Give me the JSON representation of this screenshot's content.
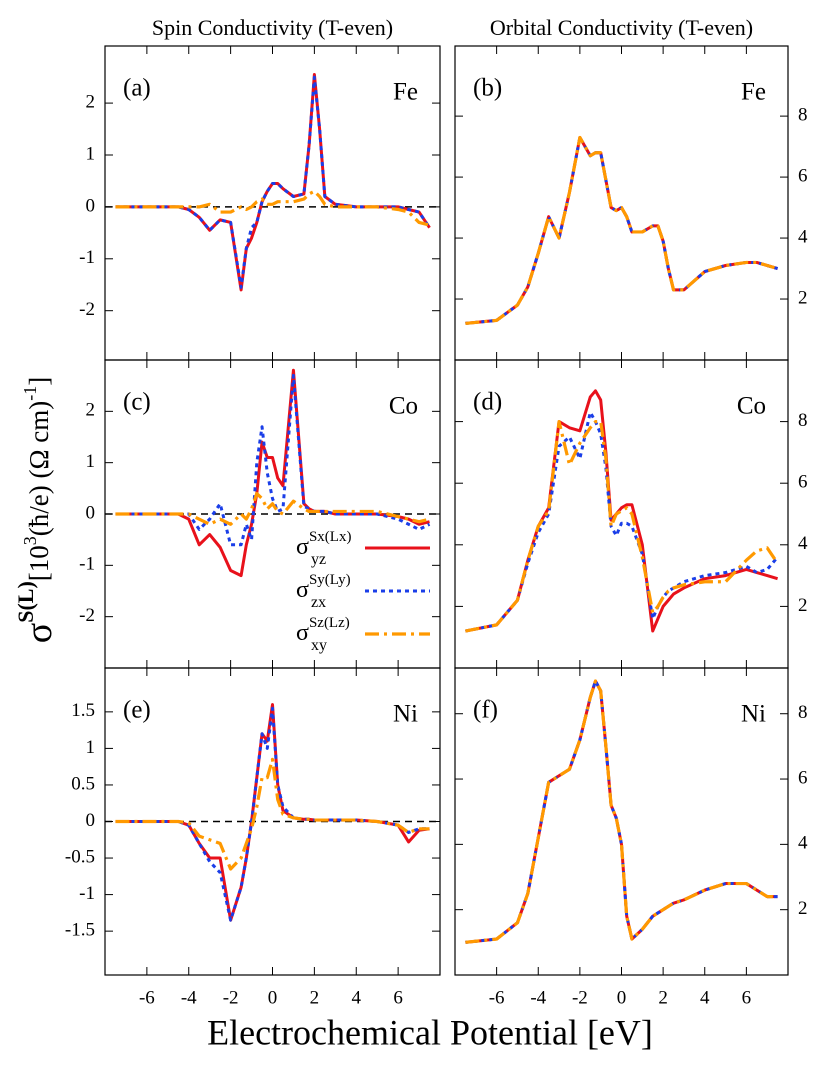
{
  "chart_data": [
    {
      "type": "line",
      "title": "Spin Conductivity (T-even)",
      "panel_label": "(a)",
      "element": "Fe",
      "zero_line": true,
      "yaxis_side": "left",
      "show_xtick_labels": false,
      "xlim": [
        -8,
        8
      ],
      "xticks": [
        -6,
        -4,
        -2,
        0,
        2,
        4,
        6
      ],
      "ylim": [
        -2.95,
        3.1
      ],
      "yticks": [
        -2,
        -1,
        0,
        1,
        2
      ],
      "x": [
        -7.5,
        -6,
        -5,
        -4.5,
        -4,
        -3.5,
        -3,
        -2.5,
        -2,
        -1.5,
        -1.25,
        -1,
        -0.75,
        -0.5,
        -0.25,
        0,
        0.25,
        0.5,
        1,
        1.5,
        1.75,
        2,
        2.25,
        2.5,
        3,
        4,
        5,
        6,
        6.5,
        7,
        7.5
      ],
      "series": [
        {
          "color": "#e8111b",
          "dash": "solid",
          "values": [
            0,
            0,
            0,
            0,
            -0.05,
            -0.2,
            -0.45,
            -0.25,
            -0.3,
            -1.6,
            -0.8,
            -0.6,
            -0.3,
            0.1,
            0.3,
            0.45,
            0.45,
            0.35,
            0.2,
            0.25,
            1.2,
            2.55,
            1.5,
            0.2,
            0.05,
            0,
            0,
            0,
            -0.05,
            -0.1,
            -0.4
          ]
        },
        {
          "color": "#1a3ee8",
          "dash": "dotted",
          "values": [
            0,
            0,
            0,
            0,
            -0.05,
            -0.2,
            -0.45,
            -0.25,
            -0.3,
            -1.55,
            -0.8,
            -0.4,
            -0.3,
            0.1,
            0.3,
            0.45,
            0.45,
            0.35,
            0.2,
            0.25,
            1.2,
            2.5,
            1.5,
            0.2,
            0.05,
            0,
            0,
            0,
            -0.05,
            -0.1,
            -0.4
          ]
        },
        {
          "color": "#ff9900",
          "dash": "dashdot",
          "values": [
            0,
            0,
            0,
            0,
            0,
            0,
            0.05,
            -0.1,
            -0.1,
            0,
            -0.05,
            0,
            0.1,
            0.15,
            0.05,
            0.05,
            0.1,
            0.1,
            0.1,
            0.15,
            0.25,
            0.3,
            0.2,
            0.05,
            0,
            0,
            0,
            -0.05,
            -0.1,
            -0.3,
            -0.35
          ]
        }
      ]
    },
    {
      "type": "line",
      "title": "Orbital Conductivity (T-even)",
      "panel_label": "(b)",
      "element": "Fe",
      "zero_line": false,
      "yaxis_side": "right",
      "show_xtick_labels": false,
      "xlim": [
        -8,
        8
      ],
      "xticks": [
        -6,
        -4,
        -2,
        0,
        2,
        4,
        6
      ],
      "ylim": [
        0,
        10.3
      ],
      "yticks": [
        2,
        4,
        6,
        8
      ],
      "x": [
        -7.5,
        -6,
        -5,
        -4.5,
        -4,
        -3.5,
        -3,
        -2.5,
        -2,
        -1.5,
        -1.25,
        -1,
        -0.75,
        -0.5,
        -0.25,
        0,
        0.25,
        0.5,
        1,
        1.5,
        1.75,
        2,
        2.25,
        2.5,
        3,
        4,
        5,
        6,
        6.5,
        7,
        7.5
      ],
      "series": [
        {
          "color": "#e8111b",
          "dash": "solid",
          "values": [
            1.2,
            1.3,
            1.8,
            2.4,
            3.5,
            4.7,
            4.0,
            5.5,
            7.3,
            6.7,
            6.8,
            6.8,
            5.9,
            5.0,
            4.9,
            5.0,
            4.7,
            4.2,
            4.2,
            4.4,
            4.4,
            3.9,
            3.0,
            2.3,
            2.3,
            2.9,
            3.1,
            3.2,
            3.2,
            3.1,
            3.0
          ]
        },
        {
          "color": "#1a3ee8",
          "dash": "dotted",
          "values": [
            1.2,
            1.3,
            1.8,
            2.4,
            3.5,
            4.7,
            4.0,
            5.5,
            7.3,
            6.7,
            6.8,
            6.8,
            5.9,
            5.0,
            4.9,
            5.0,
            4.7,
            4.2,
            4.2,
            4.4,
            4.4,
            3.9,
            3.0,
            2.3,
            2.3,
            2.9,
            3.1,
            3.2,
            3.2,
            3.1,
            3.0
          ]
        },
        {
          "color": "#ff9900",
          "dash": "dashdot",
          "values": [
            1.2,
            1.3,
            1.8,
            2.4,
            3.5,
            4.7,
            4.0,
            5.5,
            7.3,
            6.7,
            6.8,
            6.8,
            5.9,
            5.0,
            4.9,
            5.0,
            4.7,
            4.2,
            4.2,
            4.4,
            4.4,
            3.9,
            3.0,
            2.3,
            2.3,
            2.9,
            3.1,
            3.2,
            3.2,
            3.1,
            3.0
          ]
        }
      ]
    },
    {
      "type": "line",
      "panel_label": "(c)",
      "element": "Co",
      "zero_line": true,
      "yaxis_side": "left",
      "show_xtick_labels": false,
      "legend": "lower right",
      "y_label": {
        "symbol": "σ",
        "symbol_sup": "S(L)",
        "unit_start": "[10",
        "unit_exp": "3",
        "unit_middle": "(ħ/e) (Ω cm)",
        "unit_exp2": "-1",
        "unit_end": "]"
      },
      "xlim": [
        -8,
        8
      ],
      "xticks": [
        -6,
        -4,
        -2,
        0,
        2,
        4,
        6
      ],
      "ylim": [
        -3,
        3
      ],
      "yticks": [
        -2,
        -1,
        0,
        1,
        2
      ],
      "x": [
        -7.5,
        -6,
        -5,
        -4.5,
        -4,
        -3.5,
        -3,
        -2.5,
        -2,
        -1.5,
        -1.25,
        -1,
        -0.75,
        -0.5,
        -0.25,
        0,
        0.25,
        0.5,
        1,
        1.5,
        1.75,
        2,
        2.25,
        2.5,
        3,
        4,
        5,
        6,
        6.5,
        7,
        7.5
      ],
      "series": [
        {
          "name": "σ",
          "name_sub": "yz",
          "name_sup": "Sx(Lx)",
          "color": "#e8111b",
          "dash": "solid",
          "values": [
            0,
            0,
            0,
            0,
            -0.1,
            -0.6,
            -0.4,
            -0.65,
            -1.1,
            -1.2,
            -0.6,
            -0.2,
            0.4,
            1.4,
            1.1,
            1.1,
            0.7,
            0.55,
            2.8,
            0.2,
            0.1,
            0.05,
            0.05,
            0.05,
            0,
            0,
            0,
            -0.05,
            -0.1,
            -0.2,
            -0.15
          ]
        },
        {
          "name": "σ",
          "name_sub": "zx",
          "name_sup": "Sy(Ly)",
          "color": "#1a3ee8",
          "dash": "dotted",
          "values": [
            0,
            0,
            0,
            0,
            0,
            -0.3,
            -0.1,
            0.2,
            -0.6,
            -0.6,
            -0.2,
            -0.5,
            1.0,
            1.7,
            0.8,
            0.3,
            0.05,
            0.1,
            2.7,
            0.15,
            0.1,
            0.05,
            0.05,
            0.05,
            0,
            0,
            0,
            -0.1,
            -0.2,
            -0.3,
            -0.2
          ]
        },
        {
          "name": "σ",
          "name_sub": "xy",
          "name_sup": "Sz(Lz)",
          "color": "#ff9900",
          "dash": "dashdot",
          "values": [
            0,
            0,
            0,
            0,
            0,
            -0.1,
            -0.2,
            -0.1,
            -0.2,
            0,
            -0.1,
            0.1,
            0.4,
            0.3,
            0.1,
            0.2,
            0.05,
            0,
            0.25,
            0.1,
            0.05,
            0.05,
            0.05,
            0.05,
            0.05,
            0.05,
            0.05,
            -0.05,
            -0.1,
            -0.15,
            -0.1
          ]
        }
      ]
    },
    {
      "type": "line",
      "panel_label": "(d)",
      "element": "Co",
      "zero_line": false,
      "yaxis_side": "right",
      "show_xtick_labels": false,
      "xlim": [
        -8,
        8
      ],
      "xticks": [
        -6,
        -4,
        -2,
        0,
        2,
        4,
        6
      ],
      "ylim": [
        0,
        10
      ],
      "yticks": [
        2,
        4,
        6,
        8
      ],
      "x": [
        -7.5,
        -6,
        -5,
        -4.5,
        -4,
        -3.5,
        -3,
        -2.5,
        -2,
        -1.5,
        -1.25,
        -1,
        -0.75,
        -0.5,
        -0.25,
        0,
        0.25,
        0.5,
        1,
        1.5,
        1.75,
        2,
        2.25,
        2.5,
        3,
        4,
        5,
        6,
        6.5,
        7,
        7.5
      ],
      "series": [
        {
          "color": "#e8111b",
          "dash": "solid",
          "values": [
            1.2,
            1.4,
            2.2,
            3.5,
            4.6,
            5.2,
            8.0,
            7.8,
            7.7,
            8.8,
            9.0,
            8.7,
            7.0,
            4.8,
            5.0,
            5.2,
            5.3,
            5.3,
            4.0,
            1.2,
            1.6,
            2.0,
            2.2,
            2.4,
            2.6,
            2.9,
            3.0,
            3.2,
            3.1,
            3.0,
            2.9
          ]
        },
        {
          "color": "#1a3ee8",
          "dash": "dotted",
          "values": [
            1.2,
            1.4,
            2.2,
            3.4,
            4.4,
            5.0,
            7.2,
            7.5,
            6.8,
            8.3,
            8.0,
            7.6,
            6.5,
            4.6,
            4.3,
            4.7,
            4.7,
            4.6,
            3.7,
            1.6,
            2.0,
            2.3,
            2.5,
            2.6,
            2.8,
            3.0,
            3.1,
            3.3,
            3.1,
            3.2,
            3.6
          ]
        },
        {
          "color": "#ff9900",
          "dash": "dashdot",
          "values": [
            1.2,
            1.4,
            2.2,
            3.5,
            4.6,
            5.1,
            8.0,
            6.6,
            7.3,
            7.8,
            8.0,
            8.0,
            6.8,
            4.6,
            5.0,
            5.1,
            5.2,
            5.0,
            3.6,
            1.8,
            2.0,
            2.3,
            2.5,
            2.6,
            2.7,
            2.8,
            2.8,
            3.5,
            3.8,
            3.9,
            3.4
          ]
        }
      ]
    },
    {
      "type": "line",
      "panel_label": "(e)",
      "element": "Ni",
      "zero_line": true,
      "yaxis_side": "left",
      "show_xtick_labels": true,
      "x_label": "Electrochemical Potential [eV]",
      "xlim": [
        -8,
        8
      ],
      "xticks": [
        -6,
        -4,
        -2,
        0,
        2,
        4,
        6
      ],
      "ylim": [
        -2.1,
        2.1
      ],
      "yticks": [
        -1.5,
        -1,
        -0.5,
        0,
        0.5,
        1,
        1.5
      ],
      "x": [
        -7.5,
        -6,
        -5,
        -4.5,
        -4,
        -3.5,
        -3,
        -2.5,
        -2,
        -1.5,
        -1.25,
        -1,
        -0.75,
        -0.5,
        -0.25,
        0,
        0.25,
        0.5,
        1,
        1.5,
        1.75,
        2,
        2.25,
        2.5,
        3,
        4,
        5,
        6,
        6.5,
        7,
        7.5
      ],
      "series": [
        {
          "color": "#e8111b",
          "dash": "solid",
          "values": [
            0,
            0,
            0,
            0,
            -0.05,
            -0.3,
            -0.5,
            -0.5,
            -1.35,
            -0.9,
            -0.5,
            0,
            0.6,
            1.2,
            1.1,
            1.6,
            0.5,
            0.15,
            0.05,
            0.03,
            0.03,
            0.02,
            0.02,
            0.02,
            0.02,
            0.02,
            0,
            -0.05,
            -0.28,
            -0.12,
            -0.1
          ]
        },
        {
          "color": "#1a3ee8",
          "dash": "dotted",
          "values": [
            0,
            0,
            0,
            0,
            -0.05,
            -0.3,
            -0.55,
            -0.7,
            -1.35,
            -0.9,
            -0.5,
            0,
            0.6,
            1.2,
            1.0,
            1.55,
            0.5,
            0.2,
            0.05,
            0.03,
            0.03,
            0.02,
            0.02,
            0.02,
            0.02,
            0.02,
            0,
            -0.05,
            -0.15,
            -0.1,
            -0.1
          ]
        },
        {
          "color": "#ff9900",
          "dash": "dashdot",
          "values": [
            0,
            0,
            0,
            0,
            -0.02,
            -0.2,
            -0.25,
            -0.3,
            -0.65,
            -0.5,
            -0.3,
            -0.1,
            0.2,
            0.6,
            0.6,
            0.85,
            0.3,
            0.1,
            0.05,
            0.03,
            0.03,
            0.02,
            0.02,
            0.02,
            0.02,
            0.02,
            0,
            -0.05,
            -0.15,
            -0.1,
            -0.1
          ]
        }
      ]
    },
    {
      "type": "line",
      "panel_label": "(f)",
      "element": "Ni",
      "zero_line": false,
      "yaxis_side": "right",
      "show_xtick_labels": true,
      "xlim": [
        -8,
        8
      ],
      "xticks": [
        -6,
        -4,
        -2,
        0,
        2,
        4,
        6
      ],
      "ylim": [
        0,
        9.4
      ],
      "yticks": [
        2,
        4,
        6,
        8
      ],
      "x": [
        -7.5,
        -6,
        -5,
        -4.5,
        -4,
        -3.5,
        -3,
        -2.5,
        -2,
        -1.5,
        -1.25,
        -1,
        -0.75,
        -0.5,
        -0.25,
        0,
        0.25,
        0.5,
        1,
        1.5,
        1.75,
        2,
        2.25,
        2.5,
        3,
        4,
        5,
        6,
        6.5,
        7,
        7.5
      ],
      "series": [
        {
          "color": "#e8111b",
          "dash": "solid",
          "values": [
            1.0,
            1.1,
            1.6,
            2.5,
            4.2,
            5.9,
            6.1,
            6.3,
            7.2,
            8.5,
            9.0,
            8.7,
            7.0,
            5.2,
            4.8,
            4.0,
            1.8,
            1.1,
            1.4,
            1.8,
            1.9,
            2.0,
            2.1,
            2.2,
            2.3,
            2.6,
            2.8,
            2.8,
            2.6,
            2.4,
            2.4
          ]
        },
        {
          "color": "#1a3ee8",
          "dash": "dotted",
          "values": [
            1.0,
            1.1,
            1.6,
            2.5,
            4.2,
            5.9,
            6.1,
            6.3,
            7.2,
            8.5,
            9.0,
            8.7,
            7.0,
            5.2,
            4.8,
            4.0,
            1.8,
            1.1,
            1.4,
            1.8,
            1.9,
            2.0,
            2.1,
            2.2,
            2.3,
            2.6,
            2.8,
            2.8,
            2.6,
            2.4,
            2.4
          ]
        },
        {
          "color": "#ff9900",
          "dash": "dashdot",
          "values": [
            1.0,
            1.1,
            1.6,
            2.5,
            4.2,
            5.9,
            6.1,
            6.3,
            7.2,
            8.5,
            9.0,
            8.7,
            7.0,
            5.2,
            4.8,
            4.0,
            1.8,
            1.1,
            1.4,
            1.8,
            1.9,
            2.0,
            2.1,
            2.2,
            2.3,
            2.6,
            2.8,
            2.8,
            2.6,
            2.4,
            2.4
          ]
        }
      ]
    }
  ]
}
